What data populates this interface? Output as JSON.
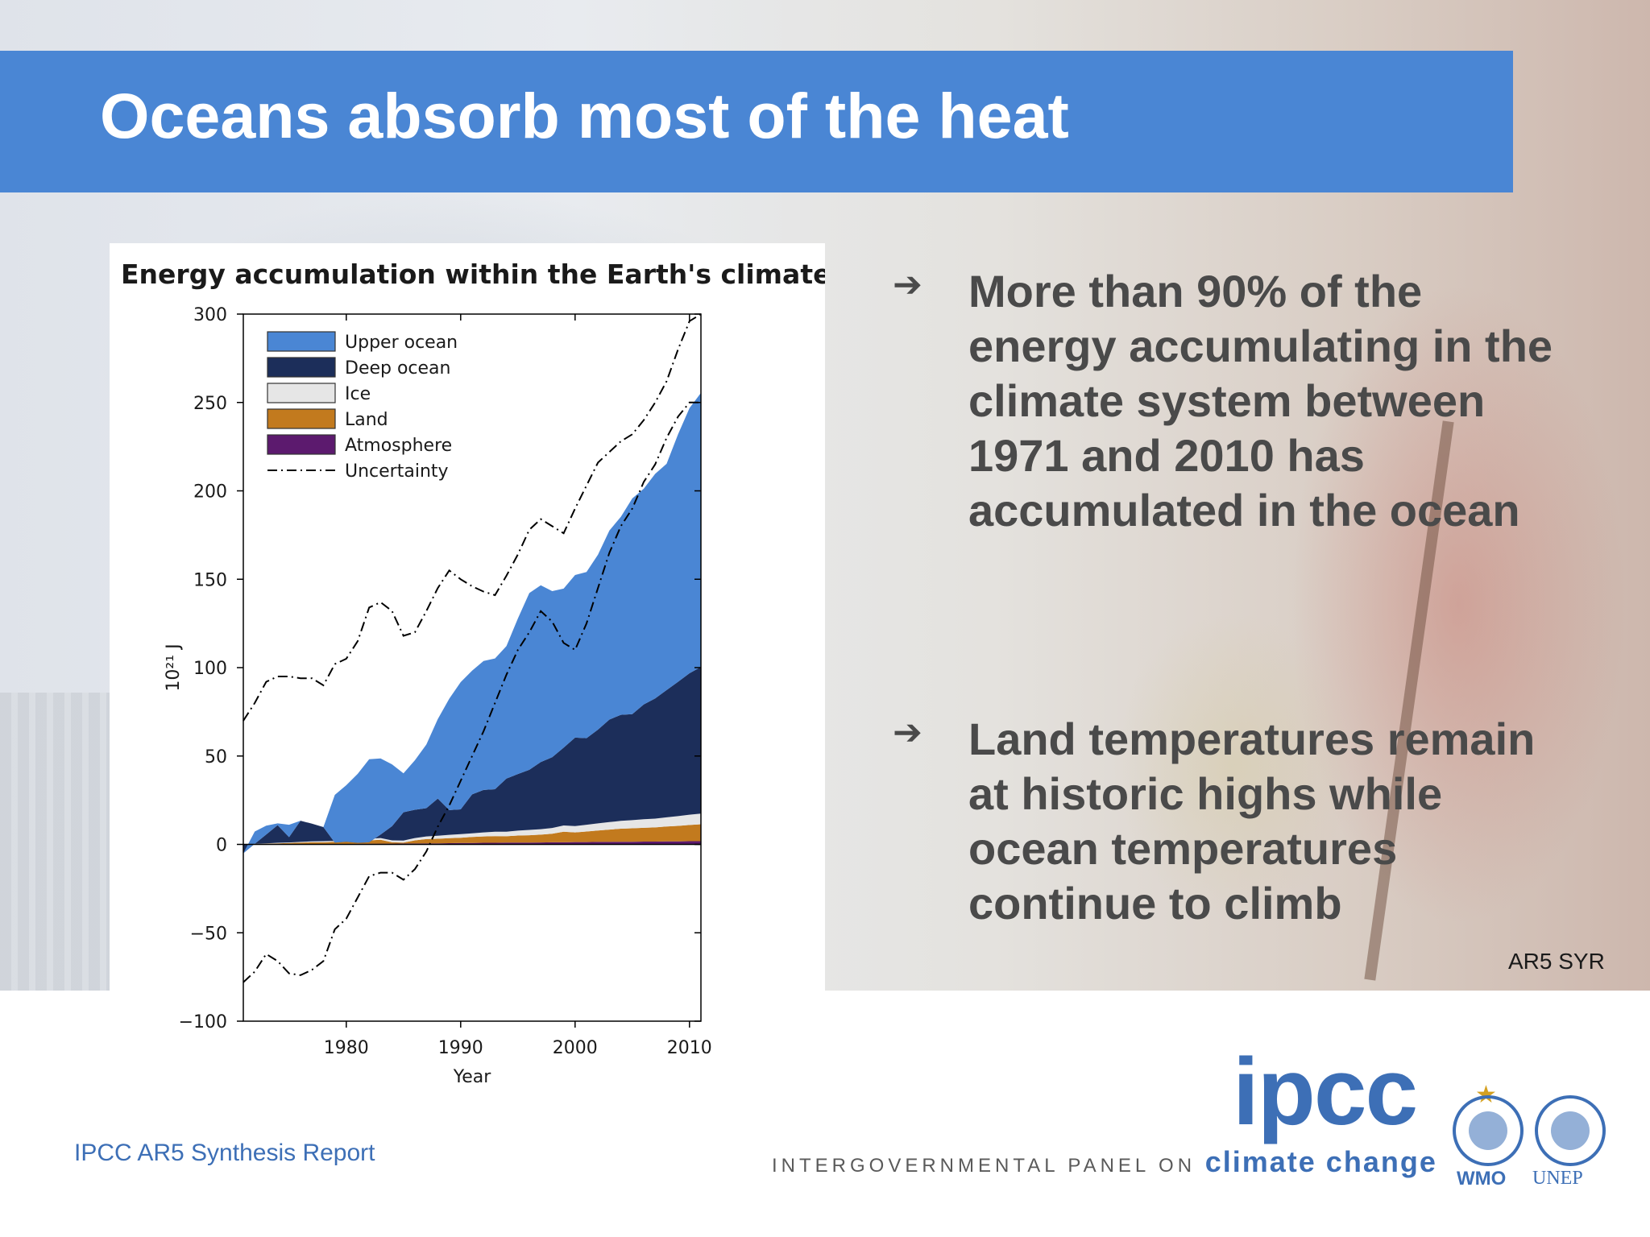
{
  "slide": {
    "title": "Oceans absorb most of the heat",
    "bullets": [
      "More than 90% of the energy accumulating in the climate system between 1971 and 2010 has accumulated in the ocean",
      "Land temperatures remain at historic highs while ocean temperatures continue to climb"
    ],
    "bullet_marker": "➔",
    "reference": "AR5 SYR",
    "footer_left": "IPCC AR5 Synthesis Report",
    "logo": {
      "name": "ipcc",
      "tagline_prefix": "INTERGOVERNMENTAL PANEL ON",
      "tagline_suffix": "climate change",
      "partner_1": "WMO",
      "partner_2": "UNEP"
    },
    "colors": {
      "title_bar": "#4a86d4",
      "bullet_text": "#4a4a4a",
      "footer_text": "#3d6fb6"
    }
  },
  "chart_data": {
    "type": "area",
    "title": "Energy accumulation within the Earth's climate system",
    "xlabel": "Year",
    "ylabel": "10²¹ J",
    "xlim": [
      1971,
      2011
    ],
    "ylim": [
      -100,
      300
    ],
    "xticks": [
      1980,
      1990,
      2000,
      2010
    ],
    "yticks": [
      -100,
      -50,
      0,
      50,
      100,
      150,
      200,
      250,
      300
    ],
    "stacked": true,
    "legend_position": "top-left",
    "x": [
      1971,
      1972,
      1973,
      1974,
      1975,
      1976,
      1977,
      1978,
      1979,
      1980,
      1981,
      1982,
      1983,
      1984,
      1985,
      1986,
      1987,
      1988,
      1989,
      1990,
      1991,
      1992,
      1993,
      1994,
      1995,
      1996,
      1997,
      1998,
      1999,
      2000,
      2001,
      2002,
      2003,
      2004,
      2005,
      2006,
      2007,
      2008,
      2009,
      2010,
      2011
    ],
    "series": [
      {
        "name": "Atmosphere",
        "color": "#5c1a6e",
        "values": [
          0,
          0,
          0,
          0,
          0,
          0,
          0,
          0,
          0,
          0.2,
          0.3,
          0.3,
          0.4,
          0.4,
          0.5,
          0.5,
          0.6,
          0.6,
          0.7,
          0.8,
          0.8,
          0.9,
          0.9,
          1,
          1,
          1,
          1.1,
          1.2,
          1.2,
          1.3,
          1.3,
          1.4,
          1.4,
          1.5,
          1.5,
          1.6,
          1.6,
          1.7,
          1.7,
          1.8,
          1.8
        ]
      },
      {
        "name": "Land",
        "color": "#c27a1e",
        "values": [
          0,
          0.2,
          0.4,
          0.6,
          0.8,
          1,
          1.2,
          1.2,
          1.4,
          1.6,
          1.8,
          2,
          2.2,
          0.8,
          0.5,
          1.8,
          2.4,
          2.6,
          2.8,
          3,
          3.4,
          3.6,
          3.8,
          3.6,
          4,
          4.2,
          4.4,
          4.8,
          6,
          5.5,
          6,
          6.5,
          7,
          7.4,
          7.6,
          7.8,
          8,
          8.4,
          8.8,
          9.2,
          9.6
        ]
      },
      {
        "name": "Ice",
        "color": "#e6e6e6",
        "values": [
          0,
          0.1,
          0.2,
          0.3,
          0.3,
          0.4,
          0.5,
          0.6,
          0.6,
          0.7,
          0.8,
          0.9,
          1,
          1.1,
          1.2,
          1.3,
          1.5,
          1.7,
          1.9,
          2,
          2.1,
          2.3,
          2.5,
          2.6,
          2.8,
          3,
          3.1,
          3.3,
          3.5,
          3.6,
          3.8,
          4,
          4.2,
          4.4,
          4.6,
          4.8,
          5,
          5.2,
          5.5,
          5.8,
          6
        ]
      },
      {
        "name": "Deep ocean",
        "color": "#1c2e5a",
        "values": [
          -5,
          0,
          5,
          10,
          3,
          12,
          10,
          8,
          -1,
          -1,
          -2,
          -2,
          2,
          8,
          16,
          16,
          16,
          21,
          14,
          14,
          22,
          24,
          24,
          30,
          32,
          34,
          38,
          40,
          44,
          50,
          49,
          53,
          58,
          60,
          60,
          65,
          68,
          72,
          76,
          80,
          83
        ]
      },
      {
        "name": "Upper ocean",
        "color": "#4a86d4",
        "values": [
          0,
          7,
          5,
          1,
          7,
          0,
          0,
          0,
          27,
          32,
          39,
          47,
          43,
          35,
          22,
          28,
          36,
          45,
          63,
          72,
          70,
          73,
          74,
          75,
          88,
          100,
          100,
          94,
          90,
          92,
          94,
          99,
          107,
          112,
          122,
          122,
          127,
          128,
          140,
          150,
          155
        ]
      }
    ],
    "uncertainty": {
      "name": "Uncertainty",
      "upper": [
        70,
        80,
        92,
        95,
        95,
        94,
        94,
        90,
        102,
        105,
        115,
        134,
        137,
        132,
        118,
        120,
        132,
        145,
        155,
        150,
        146,
        143,
        141,
        152,
        164,
        178,
        184,
        180,
        176,
        190,
        203,
        216,
        222,
        228,
        232,
        240,
        250,
        262,
        280,
        296,
        300
      ],
      "lower": [
        -78,
        -72,
        -62,
        -66,
        -73,
        -74,
        -71,
        -66,
        -48,
        -42,
        -30,
        -18,
        -16,
        -16,
        -20,
        -14,
        -4,
        10,
        22,
        36,
        50,
        64,
        80,
        96,
        110,
        120,
        132,
        126,
        114,
        110,
        125,
        145,
        165,
        180,
        190,
        205,
        215,
        230,
        242,
        250,
        250
      ]
    }
  }
}
